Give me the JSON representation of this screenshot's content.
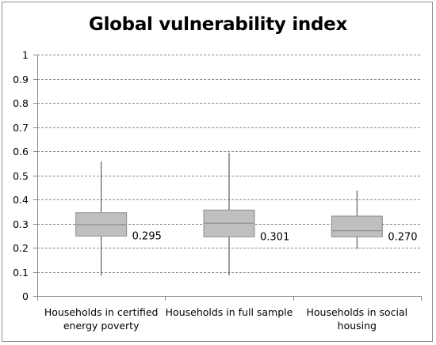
{
  "chart_data": {
    "type": "box",
    "title": "Global vulnerability index",
    "xlabel": "",
    "ylabel": "",
    "ylim": [
      0,
      1
    ],
    "yticks": [
      "0",
      "0.1",
      "0.2",
      "0.3",
      "0.4",
      "0.5",
      "0.6",
      "0.7",
      "0.8",
      "0.9",
      "1"
    ],
    "grid": "horizontal-dashed",
    "categories": [
      [
        "Households in certified",
        "energy poverty"
      ],
      [
        "Households in full sample"
      ],
      [
        "Households in social",
        "housing"
      ]
    ],
    "boxes": [
      {
        "min": 0.085,
        "q1": 0.248,
        "median": 0.295,
        "q3": 0.345,
        "max": 0.557,
        "label": "0.295"
      },
      {
        "min": 0.085,
        "q1": 0.245,
        "median": 0.301,
        "q3": 0.356,
        "max": 0.594,
        "label": "0.301"
      },
      {
        "min": 0.195,
        "q1": 0.245,
        "median": 0.27,
        "q3": 0.331,
        "max": 0.437,
        "label": "0.270"
      }
    ],
    "colors": {
      "box_fill": "#bfbfbf",
      "box_stroke": "#8c8c8c",
      "whisker": "#404040",
      "grid": "#8c8c8c",
      "axis": "#8c8c8c"
    }
  }
}
